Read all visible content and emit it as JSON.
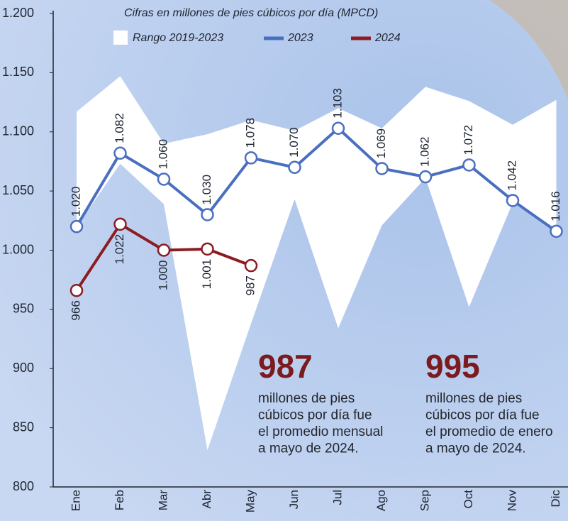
{
  "chart_data": {
    "type": "line",
    "subtitle": "Cifras en millones de pies cúbicos por día (MPCD)",
    "categories": [
      "Ene",
      "Feb",
      "Mar",
      "Abr",
      "May",
      "Jun",
      "Jul",
      "Ago",
      "Sep",
      "Oct",
      "Nov",
      "Dic"
    ],
    "range": {
      "name": "Rango 2019-2023",
      "color": "#ffffff",
      "high": [
        1117,
        1147,
        1090,
        1098,
        1110,
        1101,
        1120,
        1103,
        1138,
        1126,
        1106,
        1127
      ],
      "low": [
        1020,
        1073,
        1039,
        831,
        938,
        1043,
        934,
        1021,
        1061,
        952,
        1040,
        1016
      ]
    },
    "series": [
      {
        "name": "2023",
        "color": "#4a6fc0",
        "values": [
          1020,
          1082,
          1060,
          1030,
          1078,
          1070,
          1103,
          1069,
          1062,
          1072,
          1042,
          1016
        ],
        "value_labels": [
          "1.020",
          "1.082",
          "1.060",
          "1.030",
          "1.078",
          "1.070",
          "1.103",
          "1.069",
          "1.062",
          "1.072",
          "1.042",
          "1.016"
        ]
      },
      {
        "name": "2024",
        "color": "#8b1c22",
        "values": [
          966,
          1022,
          1000,
          1001,
          987,
          null,
          null,
          null,
          null,
          null,
          null,
          null
        ],
        "value_labels": [
          "966",
          "1.022",
          "1.000",
          "1.001",
          "987",
          null,
          null,
          null,
          null,
          null,
          null,
          null
        ]
      }
    ],
    "ylim": [
      800,
      1200
    ],
    "yticks": [
      800,
      850,
      900,
      950,
      {
        "value": 1000,
        "label": "1.000"
      },
      {
        "value": 1050,
        "label": "1.050"
      },
      {
        "value": 1100,
        "label": "1.100"
      },
      {
        "value": 1150,
        "label": "1.150"
      },
      {
        "value": 1200,
        "label": "1.200"
      }
    ],
    "annotations": [
      {
        "value": 987,
        "lines": [
          "millones de pies",
          "cúbicos por día fue",
          "el promedio mensual",
          "a mayo de 2024."
        ]
      },
      {
        "value": 995,
        "lines": [
          "millones de pies",
          "cúbicos por día fue",
          "el promedio de enero",
          "a mayo de 2024."
        ]
      }
    ]
  }
}
